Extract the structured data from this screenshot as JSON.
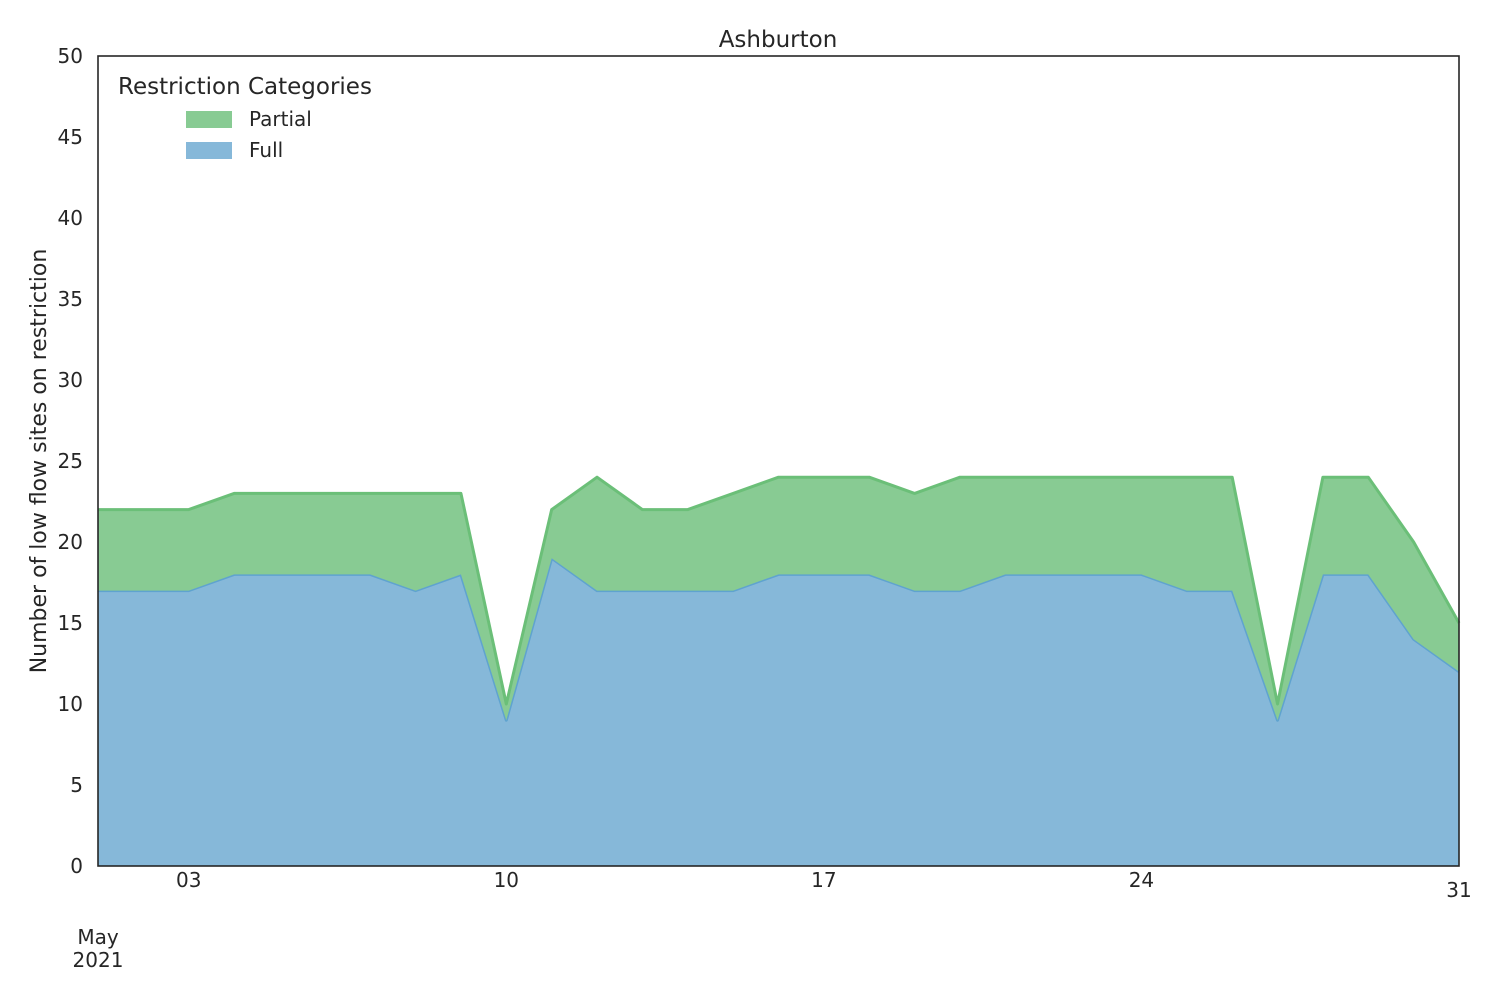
{
  "chart_data": {
    "type": "area",
    "stacked": true,
    "title": "Ashburton",
    "xlabel": "",
    "ylabel": "Number of low flow sites on restriction",
    "x": [
      "2021-05-02",
      "2021-05-03",
      "2021-05-04",
      "2021-05-05",
      "2021-05-06",
      "2021-05-07",
      "2021-05-08",
      "2021-05-09",
      "2021-05-10",
      "2021-05-11",
      "2021-05-12",
      "2021-05-13",
      "2021-05-14",
      "2021-05-15",
      "2021-05-16",
      "2021-05-17",
      "2021-05-18",
      "2021-05-19",
      "2021-05-20",
      "2021-05-21",
      "2021-05-22",
      "2021-05-23",
      "2021-05-24",
      "2021-05-25",
      "2021-05-26",
      "2021-05-27",
      "2021-05-28",
      "2021-05-29",
      "2021-05-30",
      "2021-05-31"
    ],
    "xlim": [
      "2021-05-01",
      "2021-05-31"
    ],
    "x_ticks": [
      {
        "date": "2021-05-03",
        "label": "03"
      },
      {
        "date": "2021-05-10",
        "label": "10"
      },
      {
        "date": "2021-05-17",
        "label": "17"
      },
      {
        "date": "2021-05-24",
        "label": "24"
      },
      {
        "date": "2021-05-31",
        "label": "31"
      }
    ],
    "x_secondary_label": [
      "May",
      "2021"
    ],
    "ylim": [
      0,
      50
    ],
    "y_ticks": [
      0,
      5,
      10,
      15,
      20,
      25,
      30,
      35,
      40,
      45,
      50
    ],
    "y_tick_labels": [
      "0",
      "5",
      "10",
      "15",
      "20",
      "25",
      "30",
      "35",
      "40",
      "45",
      "50"
    ],
    "grid": false,
    "legend": {
      "title": "Restriction Categories",
      "placement": "top-left"
    },
    "series": [
      {
        "name": "Full",
        "color": "#86b8d9",
        "line_color": "#5fa3cf",
        "values_at_xlim_start": 17,
        "values": [
          17,
          17,
          18,
          18,
          18,
          18,
          17,
          18,
          9,
          19,
          17,
          17,
          17,
          17,
          18,
          18,
          18,
          17,
          17,
          18,
          18,
          18,
          18,
          17,
          17,
          9,
          18,
          18,
          14,
          12
        ]
      },
      {
        "name": "Partial",
        "color": "#88cb93",
        "line_color": "#6bbf78",
        "values_at_xlim_start": 5,
        "values": [
          5,
          5,
          5,
          5,
          5,
          5,
          6,
          5,
          1,
          3,
          7,
          5,
          5,
          6,
          6,
          6,
          6,
          6,
          7,
          6,
          6,
          6,
          6,
          7,
          7,
          1,
          6,
          6,
          6,
          3
        ]
      }
    ]
  }
}
